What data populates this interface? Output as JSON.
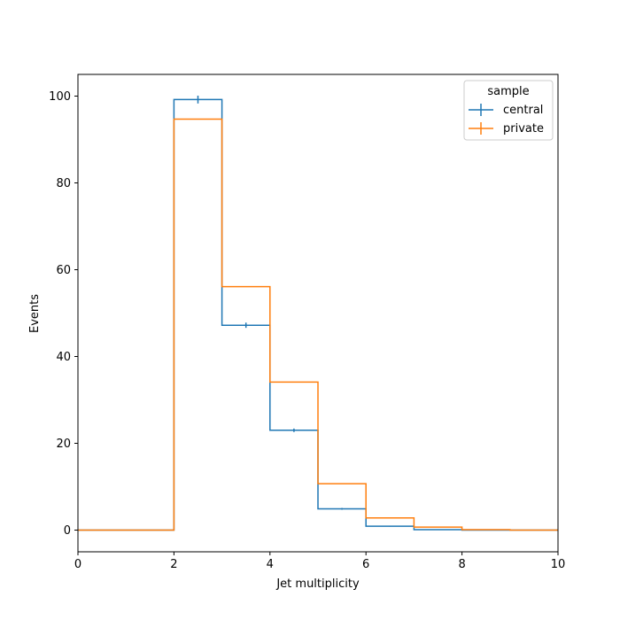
{
  "chart_data": {
    "type": "histogram-step",
    "title": "",
    "xlabel": "Jet multiplicity",
    "ylabel": "Events",
    "xlim": [
      0,
      10
    ],
    "ylim": [
      -5,
      105
    ],
    "xticks": [
      "0",
      "2",
      "4",
      "6",
      "8",
      "10"
    ],
    "yticks": [
      "0",
      "20",
      "40",
      "60",
      "80",
      "100"
    ],
    "bin_edges": [
      0,
      1,
      2,
      3,
      4,
      5,
      6,
      7,
      8,
      9,
      10
    ],
    "series": [
      {
        "name": "central",
        "color": "#1f77b4",
        "values": [
          0,
          0,
          99.2,
          47.2,
          23.0,
          4.9,
          0.9,
          0.1,
          0.0,
          0.0
        ],
        "errors": [
          0,
          0,
          0.9,
          0.6,
          0.4,
          0.2,
          0.1,
          0.05,
          0,
          0
        ]
      },
      {
        "name": "private",
        "color": "#ff7f0e",
        "values": [
          0,
          0,
          94.7,
          56.1,
          34.1,
          10.7,
          2.8,
          0.7,
          0.1,
          0.0
        ],
        "errors": [
          0,
          0,
          0,
          0,
          0,
          0,
          0,
          0,
          0,
          0
        ]
      }
    ],
    "legend": {
      "title": "sample",
      "entries": [
        "central",
        "private"
      ],
      "placement": "top-right"
    },
    "grid": false
  }
}
